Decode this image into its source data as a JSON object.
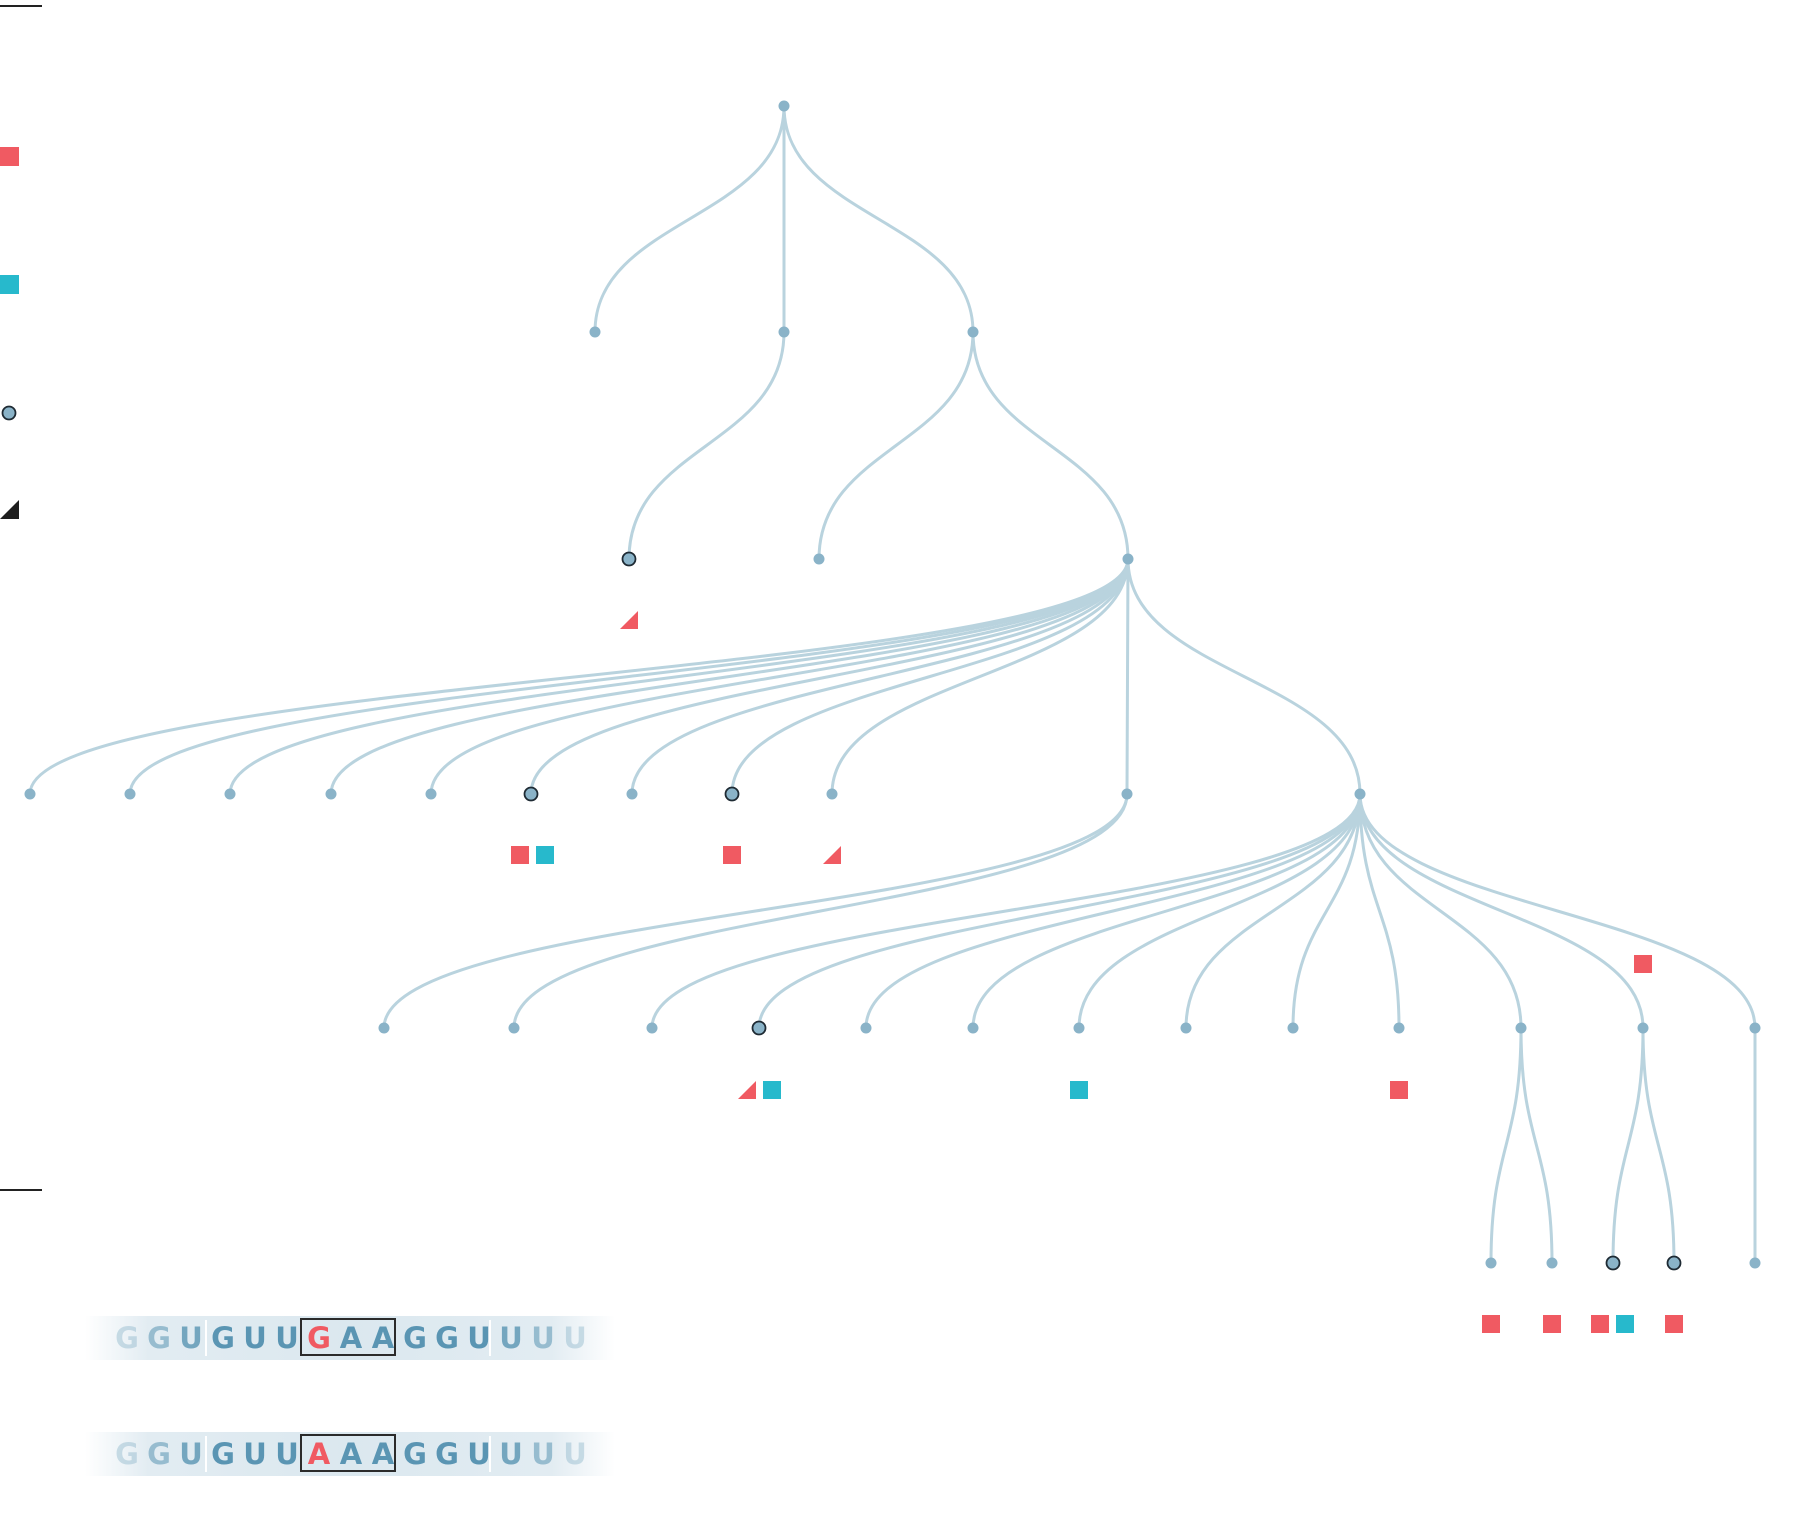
{
  "legend": [
    {
      "name": "red-square",
      "color": "#f05a62"
    },
    {
      "name": "teal-square",
      "color": "#27b9cc"
    },
    {
      "name": "ringed-node",
      "fill": "#8ab3c8",
      "stroke": "#1e2a33"
    },
    {
      "name": "black-triangle",
      "color": "#1e1e1e"
    }
  ],
  "colors": {
    "edge": "#b9d3de",
    "node": "#8ab3c8",
    "red": "#f05a62",
    "teal": "#27b9cc"
  },
  "sequences": {
    "top": {
      "letters": [
        "G",
        "G",
        "U",
        "G",
        "U",
        "U",
        "G",
        "A",
        "A",
        "G",
        "G",
        "U",
        "U",
        "U",
        "U"
      ],
      "highlight": "G"
    },
    "bottom": {
      "letters": [
        "G",
        "G",
        "U",
        "G",
        "U",
        "U",
        "A",
        "A",
        "A",
        "G",
        "G",
        "U",
        "U",
        "U",
        "U"
      ],
      "highlight": "A"
    }
  }
}
